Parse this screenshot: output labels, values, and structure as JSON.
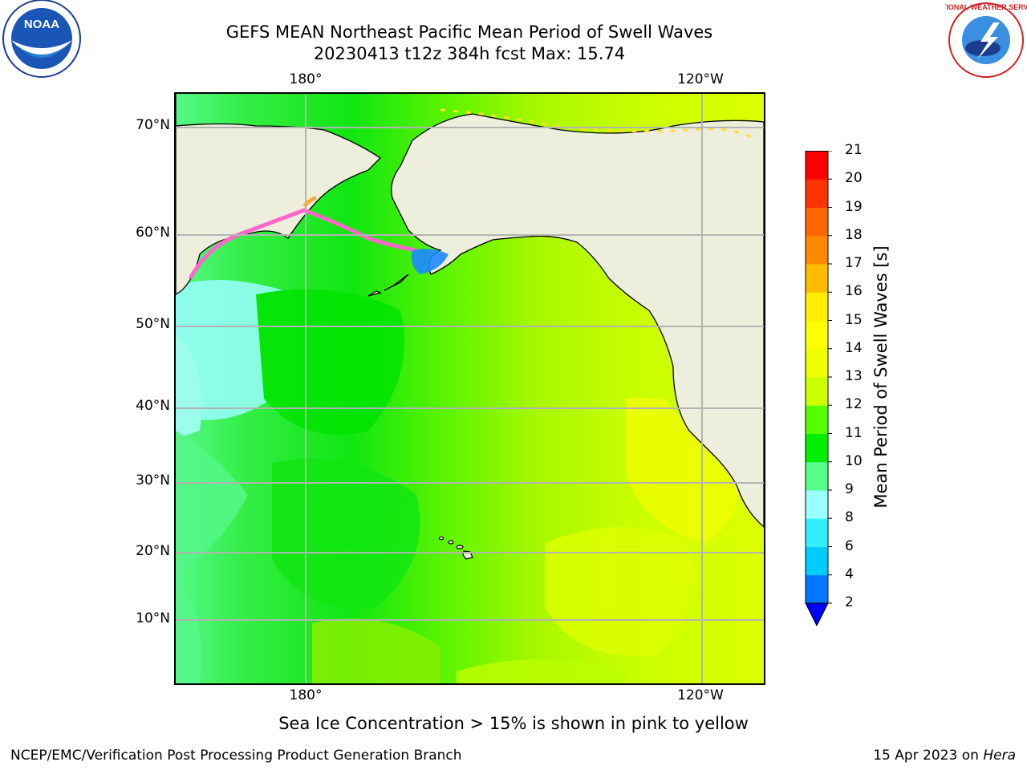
{
  "header": {
    "title_line1": "GEFS MEAN Northeast Pacific Mean Period of Swell Waves",
    "title_line2": "20230413 t12z 384h fcst   Max: 15.74"
  },
  "logos": {
    "left": {
      "icon": "noaa-logo-icon",
      "text": "NOAA"
    },
    "right": {
      "icon": "nws-logo-icon",
      "text": "NATIONAL WEATHER SERVICE"
    }
  },
  "map": {
    "lon_labels_top": [
      "180°",
      "120°W"
    ],
    "lon_labels_bottom": [
      "180°",
      "120°W"
    ],
    "lat_labels": [
      "70°N",
      "60°N",
      "50°N",
      "40°N",
      "30°N",
      "20°N",
      "10°N"
    ],
    "land_color": "#eeeedc",
    "grid_color": "#b3b3b3"
  },
  "colorbar": {
    "title": "Mean Period of Swell Waves [s]",
    "levels": [
      "2",
      "4",
      "6",
      "8",
      "9",
      "10",
      "11",
      "12",
      "13",
      "14",
      "15",
      "16",
      "17",
      "18",
      "19",
      "20",
      "21"
    ],
    "colors": [
      "#0077ff",
      "#00ccff",
      "#33eeff",
      "#99ffff",
      "#55ff88",
      "#00ee00",
      "#55ff00",
      "#ccff00",
      "#eeff00",
      "#ffff00",
      "#ffee00",
      "#ffbb00",
      "#ff8800",
      "#ff6600",
      "#ff3300",
      "#ff0000"
    ],
    "extend_color": "#0000ff"
  },
  "caption": "Sea Ice Concentration > 15% is shown in pink to yellow",
  "footer": {
    "left": "NCEP/EMC/Verification Post Processing Product Generation Branch",
    "date": "15 Apr 2023 on",
    "host": "Hera"
  }
}
